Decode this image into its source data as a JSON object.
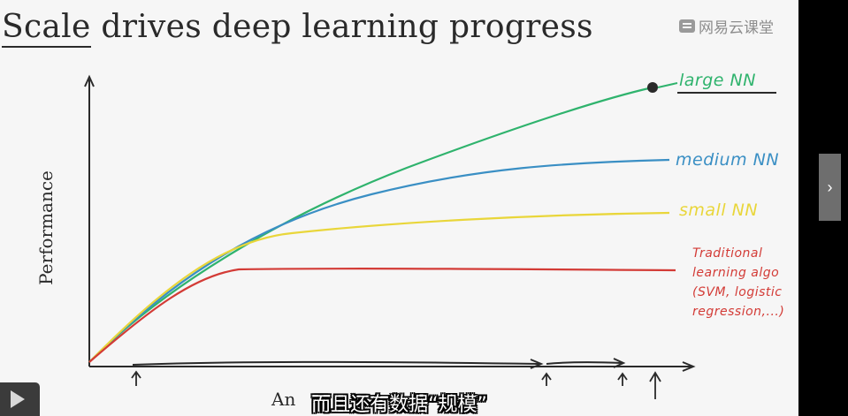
{
  "slide": {
    "title_underlined": "Scale",
    "title_rest": " drives deep learning progress",
    "ylabel": "Performance",
    "xlabel_partial": "An"
  },
  "watermark": {
    "text": "网易云课堂"
  },
  "curve_labels": {
    "large": "large NN",
    "medium": "medium NN",
    "small": "small NN",
    "traditional": "Traditional learning algo (SVM, logistic regression,...)"
  },
  "subtitle": "而且还有数据“规模”",
  "player": {
    "next_icon": "›",
    "play_icon": "play-icon"
  },
  "colors": {
    "large": "#2fb36d",
    "medium": "#3a8fc4",
    "small": "#e9d63a",
    "traditional": "#d33b36",
    "axis": "#2a2a2a"
  }
}
